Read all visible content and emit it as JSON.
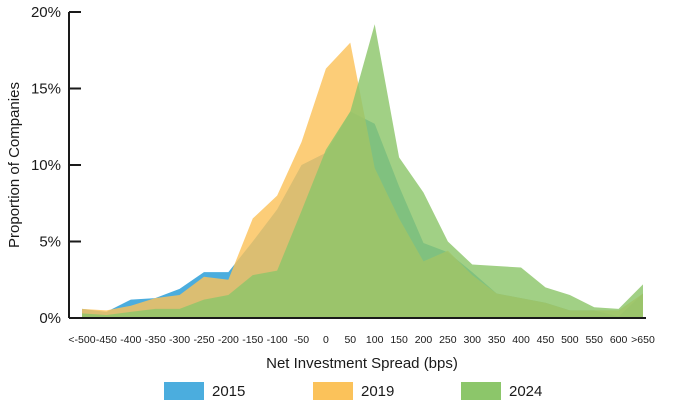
{
  "chart_data": {
    "type": "area",
    "xlabel": "Net Investment Spread (bps)",
    "ylabel": "Proportion of Companies",
    "ylim": [
      0,
      20
    ],
    "yticks": [
      "0%",
      "5%",
      "10%",
      "15%",
      "20%"
    ],
    "categories": [
      "<-500",
      "-450",
      "-400",
      "-350",
      "-300",
      "-250",
      "-200",
      "-150",
      "-100",
      "-50",
      "0",
      "50",
      "100",
      "150",
      "200",
      "250",
      "300",
      "350",
      "400",
      "450",
      "500",
      "550",
      "600",
      ">650"
    ],
    "series": [
      {
        "name": "2015",
        "color": "#4badde",
        "values": [
          0.6,
          0.4,
          1.2,
          1.3,
          1.9,
          3.0,
          3.0,
          5.0,
          7.1,
          10.0,
          10.8,
          13.5,
          12.7,
          8.6,
          4.9,
          4.3,
          3.0,
          1.6,
          1.3,
          1.0,
          0.5,
          0.5,
          0.1,
          1.6
        ]
      },
      {
        "name": "2019",
        "color": "#fbc25a",
        "values": [
          0.6,
          0.5,
          0.8,
          1.3,
          1.5,
          2.7,
          2.5,
          6.5,
          8.0,
          11.5,
          16.3,
          18.0,
          9.8,
          6.5,
          3.7,
          4.4,
          2.8,
          1.6,
          1.3,
          1.0,
          0.5,
          0.5,
          0.5,
          1.6
        ]
      },
      {
        "name": "2024",
        "color": "#8cc66a",
        "values": [
          0.3,
          0.2,
          0.4,
          0.6,
          0.6,
          1.2,
          1.5,
          2.8,
          3.1,
          7.0,
          11.0,
          13.5,
          19.2,
          10.5,
          8.2,
          5.0,
          3.5,
          3.4,
          3.3,
          2.0,
          1.5,
          0.7,
          0.6,
          2.2
        ]
      }
    ],
    "legend_position": "bottom",
    "grid": false
  }
}
